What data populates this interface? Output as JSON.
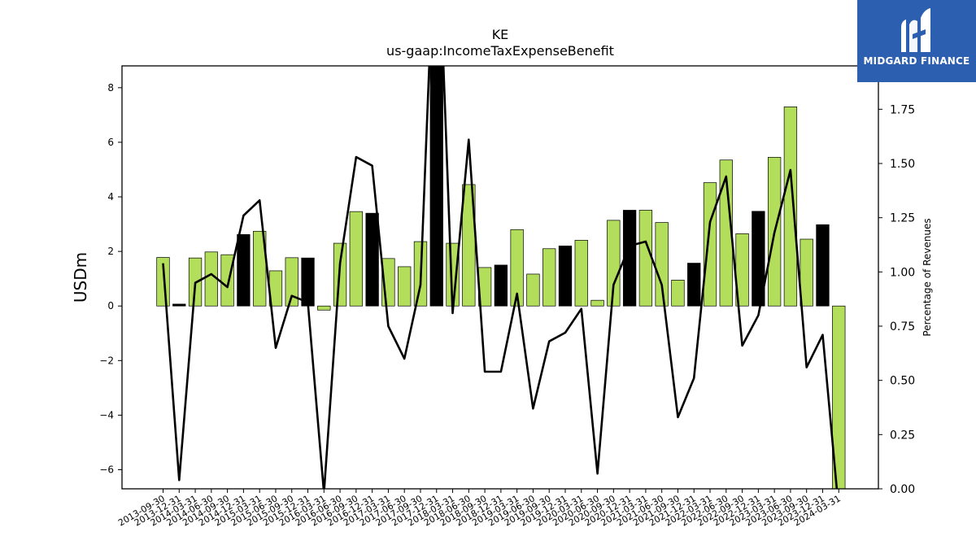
{
  "chart_data": {
    "type": "bar",
    "title": "KE",
    "subtitle": "us-gaap:IncomeTaxExpenseBenefit",
    "ylabel": "USDm",
    "y2label": "Percentage of Revenues",
    "ylim": [
      -6.7,
      8.8
    ],
    "y2lim": [
      0.0,
      1.95
    ],
    "yticks": [
      -6,
      -4,
      -2,
      0,
      2,
      4,
      6,
      8
    ],
    "y2ticks": [
      0.0,
      0.25,
      0.5,
      0.75,
      1.0,
      1.25,
      1.5,
      1.75
    ],
    "y2ticklabels": [
      "0.00",
      "0.25",
      "0.50",
      "0.75",
      "1.00",
      "1.25",
      "1.50",
      "1.75"
    ],
    "categories": [
      "2013-09-30",
      "2013-12-31",
      "2014-03-31",
      "2014-06-30",
      "2014-09-30",
      "2014-12-31",
      "2015-03-31",
      "2015-06-30",
      "2015-09-30",
      "2015-12-31",
      "2016-03-31",
      "2016-06-30",
      "2016-09-30",
      "2016-12-31",
      "2017-03-31",
      "2017-06-30",
      "2017-09-30",
      "2017-12-31",
      "2018-03-31",
      "2018-06-30",
      "2018-09-30",
      "2018-12-31",
      "2019-03-31",
      "2019-06-30",
      "2019-09-30",
      "2019-12-31",
      "2020-03-31",
      "2020-06-30",
      "2020-09-30",
      "2020-12-31",
      "2021-03-31",
      "2021-06-30",
      "2021-09-30",
      "2021-12-31",
      "2022-03-31",
      "2022-06-30",
      "2022-09-30",
      "2022-12-31",
      "2023-03-31",
      "2023-06-30",
      "2023-09-30",
      "2023-12-31",
      "2024-03-31"
    ],
    "series": [
      {
        "kind": "bar",
        "values": [
          1.78,
          0.07,
          1.76,
          1.98,
          1.88,
          2.62,
          2.74,
          1.29,
          1.77,
          1.76,
          -0.15,
          2.3,
          3.46,
          3.4,
          1.74,
          1.44,
          2.36,
          9.5,
          2.3,
          4.45,
          1.41,
          1.5,
          2.8,
          1.17,
          2.1,
          2.2,
          2.41,
          0.21,
          3.14,
          3.51,
          3.51,
          3.06,
          0.95,
          1.57,
          4.52,
          5.35,
          2.65,
          3.47,
          5.45,
          7.3,
          2.45,
          2.98,
          -6.8
        ],
        "is_q4": [
          false,
          true,
          false,
          false,
          false,
          true,
          false,
          false,
          false,
          true,
          false,
          false,
          false,
          true,
          false,
          false,
          false,
          true,
          false,
          false,
          false,
          true,
          false,
          false,
          false,
          true,
          false,
          false,
          false,
          true,
          false,
          false,
          false,
          true,
          false,
          false,
          false,
          true,
          false,
          false,
          false,
          true,
          false
        ],
        "colors": {
          "regular": "#b2de5b",
          "q4": "#000000"
        }
      },
      {
        "kind": "line",
        "axis": "right",
        "values": [
          1.04,
          0.04,
          0.95,
          0.99,
          0.93,
          1.26,
          1.33,
          0.65,
          0.89,
          0.86,
          -0.02,
          1.04,
          1.53,
          1.49,
          0.75,
          0.6,
          0.94,
          2.8,
          0.81,
          1.61,
          0.54,
          0.54,
          0.9,
          0.37,
          0.68,
          0.72,
          0.83,
          0.07,
          0.94,
          1.12,
          1.14,
          0.94,
          0.33,
          0.51,
          1.23,
          1.44,
          0.66,
          0.8,
          1.18,
          1.47,
          0.56,
          0.71,
          -0.1
        ],
        "color": "#000000"
      }
    ]
  },
  "logo": {
    "name": "MIDGARD FINANCE"
  }
}
